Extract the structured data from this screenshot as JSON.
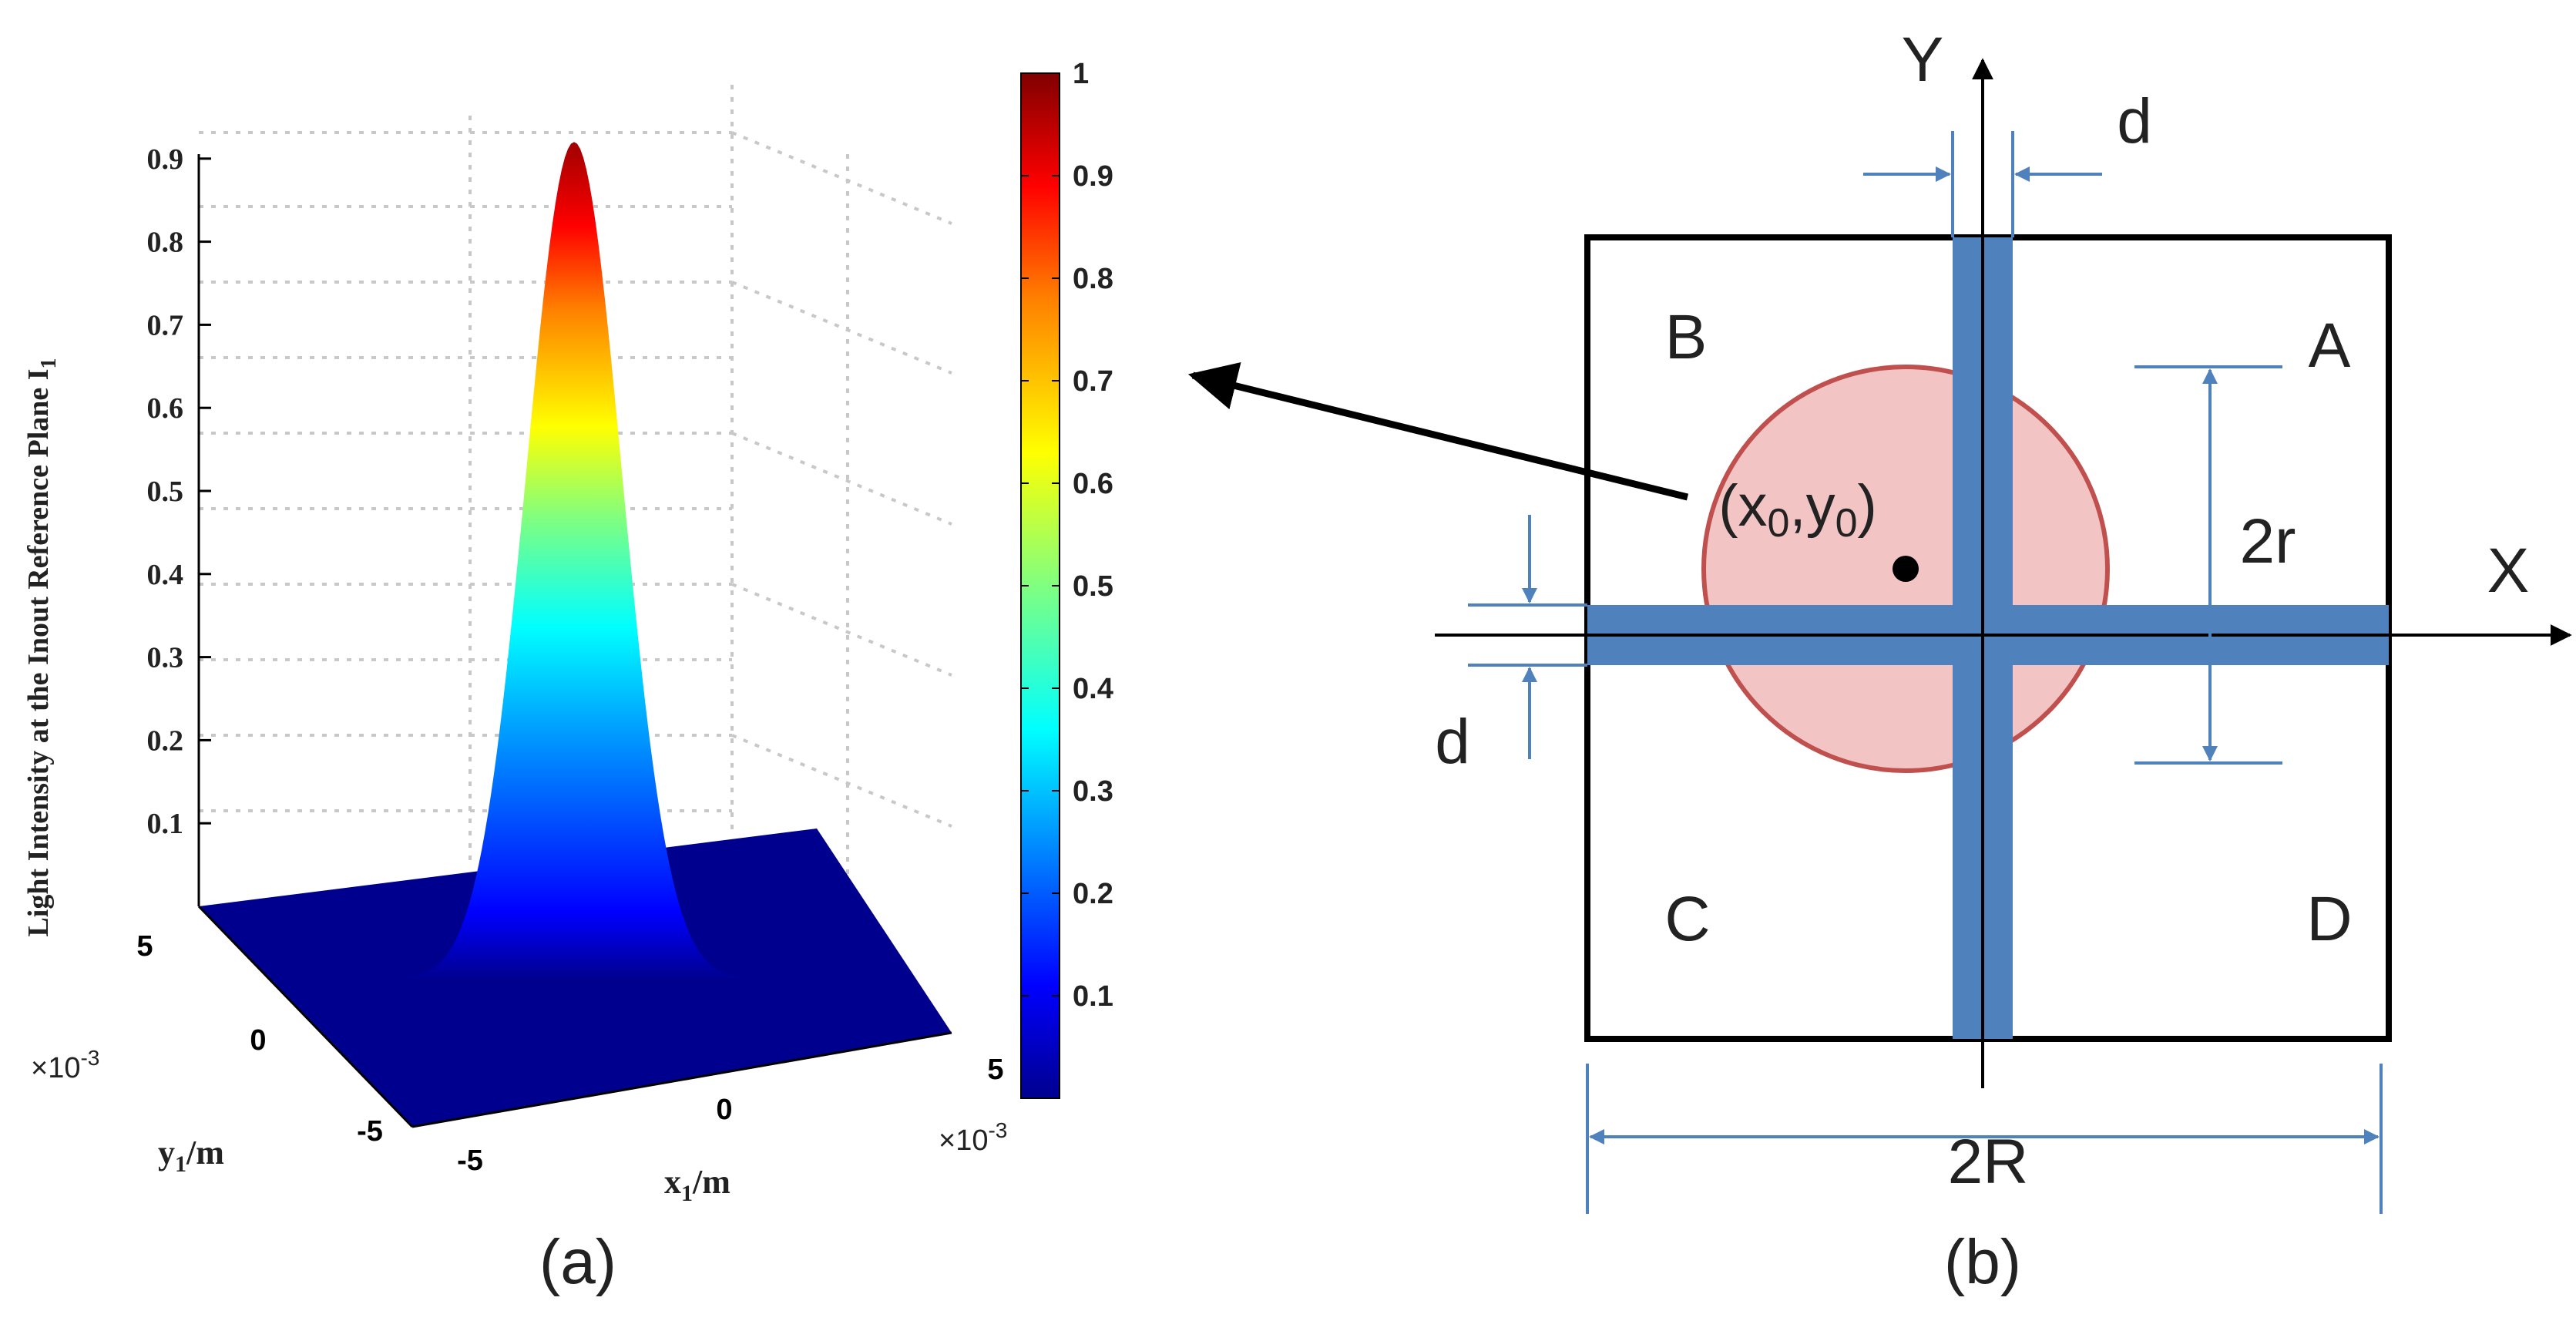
{
  "panel_a": {
    "caption": "(a)",
    "z_axis_label": "Light Intensity at the Inout Reference Plane I",
    "z_axis_label_sub": "1",
    "z_ticks": [
      "0.9",
      "0.8",
      "0.7",
      "0.6",
      "0.5",
      "0.4",
      "0.3",
      "0.2",
      "0.1"
    ],
    "x_axis_label": "x",
    "x_axis_label_sub": "1",
    "x_axis_unit": "/m",
    "y_axis_label": "y",
    "y_axis_label_sub": "1",
    "y_axis_unit": "/m",
    "x_ticks": [
      "-5",
      "0",
      "5"
    ],
    "y_ticks": [
      "5",
      "0",
      "-5"
    ],
    "x_multiplier": "×10",
    "x_multiplier_exp": "-3",
    "y_multiplier": "×10",
    "y_multiplier_exp": "-3",
    "colorbar_ticks": [
      "1",
      "0.9",
      "0.8",
      "0.7",
      "0.6",
      "0.5",
      "0.4",
      "0.3",
      "0.2",
      "0.1"
    ],
    "colormap": [
      "#00008f",
      "#0000ff",
      "#0080ff",
      "#00ffff",
      "#80ff80",
      "#ffff00",
      "#ff8000",
      "#ff0000",
      "#800000"
    ],
    "peak_value": 0.92
  },
  "panel_b": {
    "caption": "(b)",
    "axis_y_label": "Y",
    "axis_x_label": "X",
    "quadrant_labels": [
      "A",
      "B",
      "C",
      "D"
    ],
    "gap_label": "d",
    "spot_diameter_label": "2r",
    "detector_width_label": "2R",
    "center_label_x": "x",
    "center_label_x_sub": "0",
    "center_label_y": "y",
    "center_label_y_sub": "0",
    "colors": {
      "gap_bar": "#4f81bd",
      "spot_fill": "#f2c4c4",
      "spot_stroke": "#c0504d",
      "dimension_line": "#4f81bd"
    }
  }
}
